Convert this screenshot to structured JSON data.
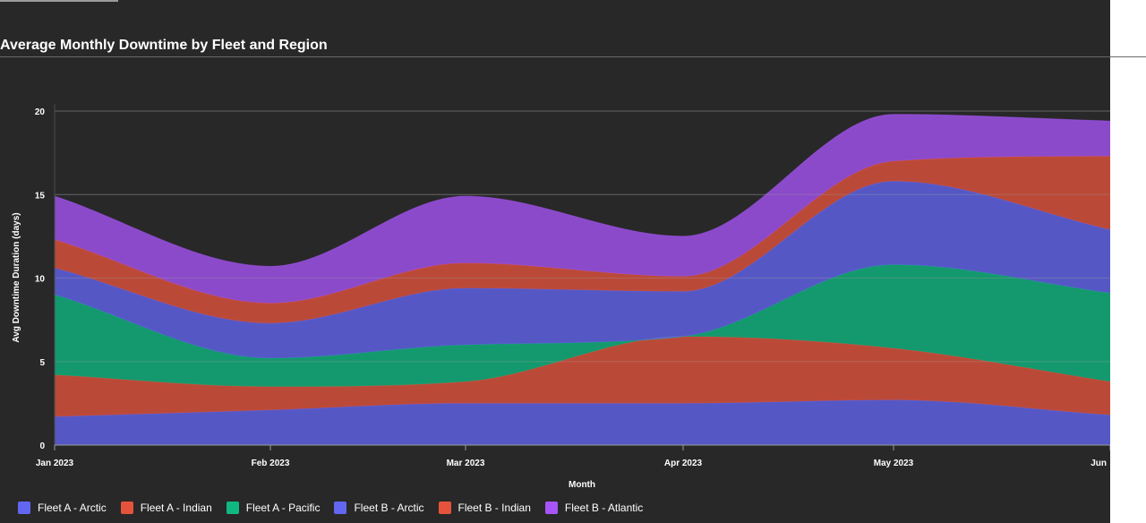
{
  "chart_data": {
    "type": "area",
    "stacked": true,
    "title": "Average Monthly Downtime by Fleet and Region",
    "xlabel": "Month",
    "ylabel": "Avg Downtime Duration (days)",
    "categories": [
      "Jan 2023",
      "Feb 2023",
      "Mar 2023",
      "Apr 2023",
      "May 2023",
      "Jun"
    ],
    "ylim": [
      0,
      21
    ],
    "yticks": [
      0,
      5,
      10,
      15,
      20
    ],
    "grid": true,
    "legend_position": "bottom-left",
    "series": [
      {
        "name": "Fleet A - Arctic",
        "values": [
          1.7,
          2.1,
          2.5,
          2.5,
          2.7,
          1.8
        ],
        "color": "#6366f1"
      },
      {
        "name": "Fleet A - Indian",
        "values": [
          2.5,
          1.4,
          1.3,
          4.0,
          3.1,
          2.0
        ],
        "color": "#e5533d"
      },
      {
        "name": "Fleet A - Pacific",
        "values": [
          4.8,
          1.7,
          2.2,
          0.0,
          5.0,
          5.3
        ],
        "color": "#10b981"
      },
      {
        "name": "Fleet B - Arctic",
        "values": [
          1.6,
          2.1,
          3.4,
          2.7,
          5.0,
          3.8
        ],
        "color": "#6366f1"
      },
      {
        "name": "Fleet B - Indian",
        "values": [
          1.7,
          1.2,
          1.5,
          0.9,
          1.2,
          4.4
        ],
        "color": "#e5533d"
      },
      {
        "name": "Fleet B - Atlantic",
        "values": [
          2.6,
          2.2,
          4.0,
          2.4,
          2.8,
          2.1
        ],
        "color": "#a855f7"
      }
    ]
  }
}
